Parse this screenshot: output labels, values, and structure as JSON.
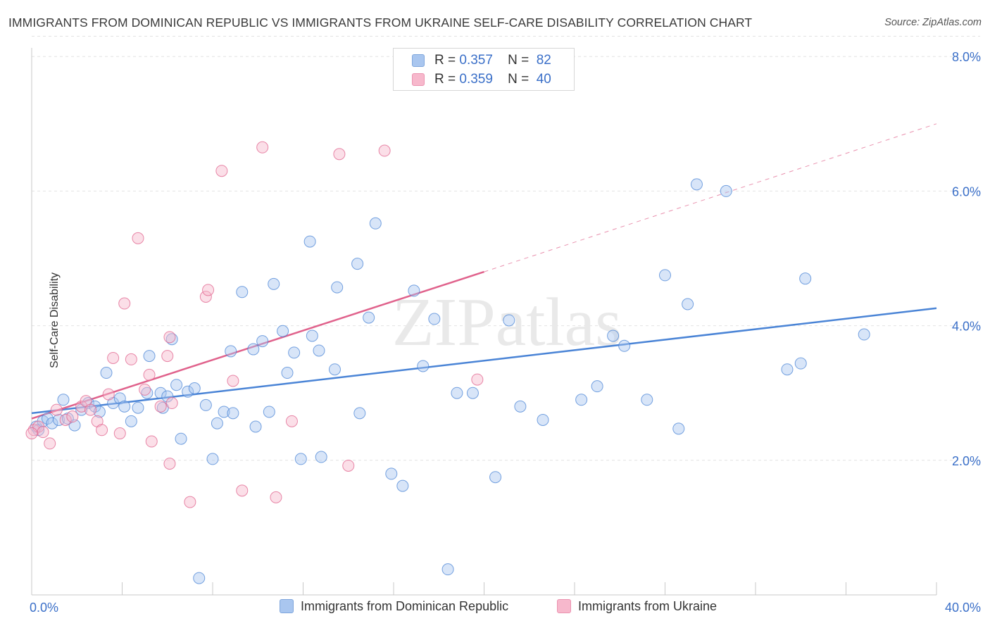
{
  "title": "IMMIGRANTS FROM DOMINICAN REPUBLIC VS IMMIGRANTS FROM UKRAINE SELF-CARE DISABILITY CORRELATION CHART",
  "source": "Source: ZipAtlas.com",
  "watermark": "ZIPatlas",
  "legend_top": [
    {
      "r_label": "R =",
      "r_value": "0.357",
      "n_label": "N =",
      "n_value": "82",
      "color": "#a9c6ef"
    },
    {
      "r_label": "R =",
      "r_value": "0.359",
      "n_label": "N =",
      "n_value": "40",
      "color": "#f7b8cc"
    }
  ],
  "legend_bottom": [
    {
      "label": "Immigrants from Dominican Republic",
      "color": "#a9c6ef"
    },
    {
      "label": "Immigrants from Ukraine",
      "color": "#f7b8cc"
    }
  ],
  "chart_data": {
    "type": "scatter",
    "title": "IMMIGRANTS FROM DOMINICAN REPUBLIC VS IMMIGRANTS FROM UKRAINE SELF-CARE DISABILITY CORRELATION CHART",
    "xlabel": "",
    "ylabel": "Self-Care Disability",
    "xlim": [
      0,
      40
    ],
    "ylim": [
      0,
      8.3
    ],
    "x_tick_labels": [
      "0.0%",
      "40.0%"
    ],
    "y_tick_labels": [
      "2.0%",
      "4.0%",
      "6.0%",
      "8.0%"
    ],
    "y_ticks": [
      2,
      4,
      6,
      8
    ],
    "grid": true,
    "legend_position": "top-center",
    "series": [
      {
        "name": "Immigrants from Dominican Republic",
        "color": "#4a84d6",
        "fill": "#a9c6ef",
        "r": 0.357,
        "n": 82,
        "trend": {
          "x": [
            0,
            40
          ],
          "y": [
            2.7,
            4.26
          ],
          "style": "solid"
        },
        "points": [
          [
            0.2,
            2.5
          ],
          [
            0.3,
            2.45
          ],
          [
            0.5,
            2.58
          ],
          [
            0.7,
            2.62
          ],
          [
            0.9,
            2.55
          ],
          [
            1.2,
            2.6
          ],
          [
            1.4,
            2.9
          ],
          [
            1.6,
            2.62
          ],
          [
            1.9,
            2.52
          ],
          [
            2.2,
            2.75
          ],
          [
            2.5,
            2.85
          ],
          [
            2.8,
            2.8
          ],
          [
            3.0,
            2.72
          ],
          [
            3.3,
            3.3
          ],
          [
            3.6,
            2.85
          ],
          [
            3.9,
            2.92
          ],
          [
            4.1,
            2.8
          ],
          [
            4.4,
            2.58
          ],
          [
            4.7,
            2.78
          ],
          [
            5.1,
            3.0
          ],
          [
            5.2,
            3.55
          ],
          [
            5.7,
            3.0
          ],
          [
            5.8,
            2.78
          ],
          [
            6.0,
            2.95
          ],
          [
            6.2,
            3.8
          ],
          [
            6.4,
            3.12
          ],
          [
            6.6,
            2.32
          ],
          [
            6.9,
            3.02
          ],
          [
            7.2,
            3.07
          ],
          [
            7.4,
            0.25
          ],
          [
            7.7,
            2.82
          ],
          [
            8.0,
            2.02
          ],
          [
            8.2,
            2.55
          ],
          [
            8.5,
            2.72
          ],
          [
            8.8,
            3.62
          ],
          [
            8.9,
            2.7
          ],
          [
            9.3,
            4.5
          ],
          [
            9.8,
            3.65
          ],
          [
            9.9,
            2.5
          ],
          [
            10.2,
            3.77
          ],
          [
            10.5,
            2.72
          ],
          [
            10.7,
            4.62
          ],
          [
            11.1,
            3.92
          ],
          [
            11.3,
            3.3
          ],
          [
            11.6,
            3.6
          ],
          [
            11.9,
            2.02
          ],
          [
            12.3,
            5.25
          ],
          [
            12.4,
            3.85
          ],
          [
            12.7,
            3.63
          ],
          [
            12.8,
            2.05
          ],
          [
            13.4,
            3.35
          ],
          [
            13.5,
            4.57
          ],
          [
            14.4,
            4.92
          ],
          [
            14.5,
            2.7
          ],
          [
            14.9,
            4.12
          ],
          [
            15.2,
            5.52
          ],
          [
            15.9,
            1.8
          ],
          [
            16.4,
            1.62
          ],
          [
            16.9,
            4.52
          ],
          [
            17.3,
            3.4
          ],
          [
            17.8,
            4.1
          ],
          [
            18.4,
            0.38
          ],
          [
            18.8,
            3.0
          ],
          [
            19.5,
            3.0
          ],
          [
            20.5,
            1.75
          ],
          [
            21.1,
            4.08
          ],
          [
            21.6,
            2.8
          ],
          [
            22.6,
            2.6
          ],
          [
            24.3,
            2.9
          ],
          [
            25.0,
            3.1
          ],
          [
            25.7,
            3.85
          ],
          [
            26.2,
            3.7
          ],
          [
            27.2,
            2.9
          ],
          [
            28.0,
            4.75
          ],
          [
            28.6,
            2.47
          ],
          [
            29.0,
            4.32
          ],
          [
            29.4,
            6.1
          ],
          [
            30.7,
            6.0
          ],
          [
            33.4,
            3.35
          ],
          [
            34.0,
            3.44
          ],
          [
            34.2,
            4.7
          ],
          [
            36.8,
            3.87
          ]
        ]
      },
      {
        "name": "Immigrants from Ukraine",
        "color": "#e0628c",
        "fill": "#f7b8cc",
        "r": 0.359,
        "n": 40,
        "trend": {
          "x": [
            0,
            20
          ],
          "y": [
            2.62,
            4.8
          ],
          "style": "solid"
        },
        "trend_extension": {
          "x": [
            20,
            40
          ],
          "y": [
            4.8,
            7.0
          ],
          "style": "dashed"
        },
        "points": [
          [
            0.1,
            2.45
          ],
          [
            0.3,
            2.5
          ],
          [
            0.5,
            2.42
          ],
          [
            0.8,
            2.25
          ],
          [
            1.1,
            2.75
          ],
          [
            1.5,
            2.6
          ],
          [
            1.8,
            2.65
          ],
          [
            2.2,
            2.8
          ],
          [
            2.4,
            2.88
          ],
          [
            2.6,
            2.75
          ],
          [
            2.9,
            2.58
          ],
          [
            3.1,
            2.45
          ],
          [
            3.4,
            2.98
          ],
          [
            3.6,
            3.52
          ],
          [
            3.9,
            2.4
          ],
          [
            4.1,
            4.33
          ],
          [
            4.4,
            3.5
          ],
          [
            4.7,
            5.3
          ],
          [
            5.0,
            3.05
          ],
          [
            5.2,
            3.27
          ],
          [
            5.3,
            2.28
          ],
          [
            5.7,
            2.8
          ],
          [
            6.0,
            3.55
          ],
          [
            6.1,
            3.83
          ],
          [
            6.2,
            2.85
          ],
          [
            6.1,
            1.95
          ],
          [
            7.0,
            1.38
          ],
          [
            7.7,
            4.43
          ],
          [
            7.8,
            4.53
          ],
          [
            8.4,
            6.3
          ],
          [
            8.9,
            3.18
          ],
          [
            9.3,
            1.55
          ],
          [
            10.2,
            6.65
          ],
          [
            10.8,
            1.45
          ],
          [
            11.5,
            2.58
          ],
          [
            13.6,
            6.55
          ],
          [
            14.0,
            1.92
          ],
          [
            15.6,
            6.6
          ],
          [
            19.7,
            3.2
          ],
          [
            0.0,
            2.4
          ]
        ]
      }
    ]
  }
}
